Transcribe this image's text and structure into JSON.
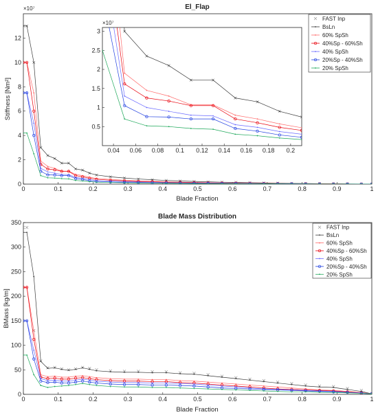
{
  "colors": {
    "FAST Inp": "#9a9a9a",
    "BsLn": "#3a3a3a",
    "60% SpSh": "#ff6a6a",
    "40%Sp - 60%Sh": "#e8000b",
    "40% SpSh": "#6a6aff",
    "20%Sp - 40%Sh": "#1f3fe0",
    "20% SpSh": "#1ea85a"
  },
  "chart_data": [
    {
      "type": "line",
      "title": "El_Flap",
      "xlabel": "Blade Fraction",
      "ylabel": "Stiffness [Nm²]",
      "xlim": [
        0,
        1
      ],
      "ylim": [
        0,
        14
      ],
      "y_exponent": "×10⁷",
      "xticks": [
        "0",
        "0.1",
        "0.2",
        "0.3",
        "0.4",
        "0.5",
        "0.6",
        "0.7",
        "0.8",
        "0.9",
        "1"
      ],
      "yticks": [
        "0",
        "2",
        "4",
        "6",
        "8",
        "10",
        "12"
      ],
      "grid": false,
      "legend_position": "top-right",
      "x": [
        0,
        0.01,
        0.03,
        0.05,
        0.07,
        0.09,
        0.11,
        0.13,
        0.15,
        0.17,
        0.19,
        0.21,
        0.25,
        0.29,
        0.33,
        0.37,
        0.41,
        0.45,
        0.49,
        0.53,
        0.57,
        0.61,
        0.65,
        0.69,
        0.73,
        0.77,
        0.81,
        0.85,
        0.89,
        0.93,
        0.97,
        1.0
      ],
      "series": [
        {
          "name": "FAST Inp",
          "values": [
            13.0,
            13.0,
            10.0,
            3.0,
            2.35,
            2.1,
            1.72,
            1.72,
            1.25,
            1.15,
            0.9,
            0.75,
            0.6,
            0.5,
            0.42,
            0.36,
            0.3,
            0.26,
            0.22,
            0.19,
            0.16,
            0.14,
            0.12,
            0.1,
            0.08,
            0.06,
            0.05,
            0.04,
            0.03,
            0.02,
            0.01,
            0.0
          ]
        },
        {
          "name": "BsLn",
          "values": [
            13.0,
            13.0,
            10.0,
            3.0,
            2.35,
            2.1,
            1.72,
            1.72,
            1.25,
            1.15,
            0.9,
            0.75,
            0.6,
            0.5,
            0.42,
            0.36,
            0.3,
            0.26,
            0.22,
            0.19,
            0.16,
            0.14,
            0.12,
            0.1,
            0.08,
            0.06,
            0.05,
            0.04,
            0.03,
            0.02,
            0.01,
            0.0
          ]
        },
        {
          "name": "60% SpSh",
          "values": [
            10.0,
            10.0,
            7.5,
            1.9,
            1.45,
            1.3,
            1.07,
            1.07,
            0.8,
            0.7,
            0.57,
            0.47,
            0.38,
            0.32,
            0.27,
            0.23,
            0.19,
            0.16,
            0.14,
            0.12,
            0.1,
            0.09,
            0.08,
            0.06,
            0.05,
            0.04,
            0.03,
            0.025,
            0.02,
            0.01,
            0.005,
            0.0
          ]
        },
        {
          "name": "40%Sp - 60%Sh",
          "values": [
            10.0,
            10.0,
            6.0,
            1.62,
            1.25,
            1.17,
            1.05,
            1.05,
            0.7,
            0.6,
            0.48,
            0.4,
            0.32,
            0.27,
            0.22,
            0.19,
            0.16,
            0.14,
            0.12,
            0.1,
            0.085,
            0.075,
            0.065,
            0.05,
            0.04,
            0.03,
            0.025,
            0.02,
            0.015,
            0.01,
            0.005,
            0.0
          ]
        },
        {
          "name": "40% SpSh",
          "values": [
            7.5,
            7.5,
            5.0,
            1.3,
            1.0,
            0.9,
            0.8,
            0.78,
            0.55,
            0.48,
            0.37,
            0.3,
            0.25,
            0.21,
            0.17,
            0.15,
            0.12,
            0.1,
            0.09,
            0.08,
            0.07,
            0.06,
            0.05,
            0.04,
            0.03,
            0.025,
            0.02,
            0.015,
            0.01,
            0.008,
            0.004,
            0.0
          ]
        },
        {
          "name": "20%Sp - 40%Sh",
          "values": [
            7.5,
            7.5,
            4.0,
            1.05,
            0.76,
            0.75,
            0.7,
            0.7,
            0.45,
            0.38,
            0.28,
            0.22,
            0.18,
            0.15,
            0.12,
            0.1,
            0.09,
            0.08,
            0.07,
            0.06,
            0.05,
            0.04,
            0.035,
            0.03,
            0.025,
            0.02,
            0.015,
            0.01,
            0.008,
            0.005,
            0.002,
            0.0
          ]
        },
        {
          "name": "20% SpSh",
          "values": [
            4.2,
            4.2,
            2.5,
            0.7,
            0.52,
            0.5,
            0.45,
            0.43,
            0.3,
            0.26,
            0.2,
            0.16,
            0.13,
            0.11,
            0.09,
            0.08,
            0.07,
            0.06,
            0.05,
            0.04,
            0.035,
            0.03,
            0.025,
            0.02,
            0.015,
            0.01,
            0.008,
            0.006,
            0.004,
            0.003,
            0.001,
            0.0
          ]
        }
      ],
      "inset": {
        "xlim": [
          0.03,
          0.21
        ],
        "ylim": [
          0,
          3.1
        ],
        "y_exponent": "×10⁷",
        "xticks": [
          "0.04",
          "0.06",
          "0.08",
          "0.1",
          "0.12",
          "0.14",
          "0.16",
          "0.18",
          "0.2"
        ],
        "yticks": [
          "0.5",
          "1",
          "1.5",
          "2",
          "2.5",
          "3"
        ]
      }
    },
    {
      "type": "line",
      "title": "Blade Mass Distribution",
      "xlabel": "Blade Fraction",
      "ylabel": "BMass [kg/m]",
      "xlim": [
        0,
        1
      ],
      "ylim": [
        0,
        350
      ],
      "xticks": [
        "0",
        "0.1",
        "0.2",
        "0.3",
        "0.4",
        "0.5",
        "0.6",
        "0.7",
        "0.8",
        "0.9",
        "1"
      ],
      "yticks": [
        "0",
        "50",
        "100",
        "150",
        "200",
        "250",
        "300",
        "350"
      ],
      "grid": false,
      "legend_position": "top-right",
      "x": [
        0,
        0.01,
        0.03,
        0.05,
        0.07,
        0.09,
        0.11,
        0.13,
        0.15,
        0.17,
        0.19,
        0.21,
        0.25,
        0.29,
        0.33,
        0.37,
        0.41,
        0.45,
        0.49,
        0.53,
        0.57,
        0.61,
        0.65,
        0.69,
        0.73,
        0.77,
        0.81,
        0.85,
        0.89,
        0.93,
        0.97,
        1.0
      ],
      "series": [
        {
          "name": "FAST Inp",
          "values": [
            340,
            340,
            130,
            68,
            54,
            55,
            52,
            50,
            52,
            55,
            53,
            50,
            48,
            47,
            47,
            46,
            46,
            44,
            43,
            40,
            37,
            34,
            31,
            28,
            25,
            22,
            19,
            17,
            16,
            12,
            8,
            2
          ]
        },
        {
          "name": "BsLn",
          "values": [
            330,
            330,
            240,
            67,
            53,
            54,
            51,
            49,
            51,
            54,
            51,
            48,
            46,
            45,
            45,
            44,
            44,
            42,
            41,
            38,
            35,
            32,
            29,
            26,
            23,
            20,
            17,
            15,
            14,
            10,
            6,
            1
          ]
        },
        {
          "name": "60% SpSh",
          "values": [
            218,
            218,
            130,
            40,
            36,
            37,
            35,
            35,
            37,
            38,
            36,
            34,
            32,
            31,
            31,
            30,
            30,
            28,
            27,
            25,
            23,
            21,
            19,
            17,
            15,
            13,
            11,
            9,
            8,
            6,
            4,
            1
          ]
        },
        {
          "name": "40%Sp - 60%Sh",
          "values": [
            218,
            218,
            112,
            35,
            32,
            33,
            31,
            31,
            33,
            34,
            32,
            30,
            28,
            27,
            27,
            26,
            26,
            24,
            23,
            21,
            19,
            17,
            15,
            13,
            11,
            10,
            9,
            8,
            7,
            5,
            3,
            1
          ]
        },
        {
          "name": "40% SpSh",
          "values": [
            150,
            150,
            90,
            32,
            28,
            29,
            27,
            27,
            29,
            31,
            29,
            27,
            25,
            24,
            24,
            23,
            23,
            22,
            21,
            19,
            17,
            15,
            13,
            11,
            10,
            9,
            8,
            7,
            6,
            4,
            3,
            1
          ]
        },
        {
          "name": "20%Sp - 40%Sh",
          "values": [
            150,
            150,
            72,
            27,
            24,
            25,
            23,
            23,
            25,
            27,
            25,
            23,
            21,
            20,
            20,
            19,
            19,
            18,
            17,
            15,
            13,
            12,
            11,
            10,
            9,
            8,
            7,
            6,
            5,
            4,
            2,
            1
          ]
        },
        {
          "name": "20% SpSh",
          "values": [
            80,
            80,
            40,
            18,
            14,
            16,
            17,
            18,
            20,
            22,
            20,
            18,
            16,
            15,
            15,
            14,
            14,
            13,
            12,
            11,
            10,
            9,
            8,
            7,
            6,
            5,
            5,
            4,
            4,
            3,
            2,
            1
          ]
        }
      ]
    }
  ]
}
